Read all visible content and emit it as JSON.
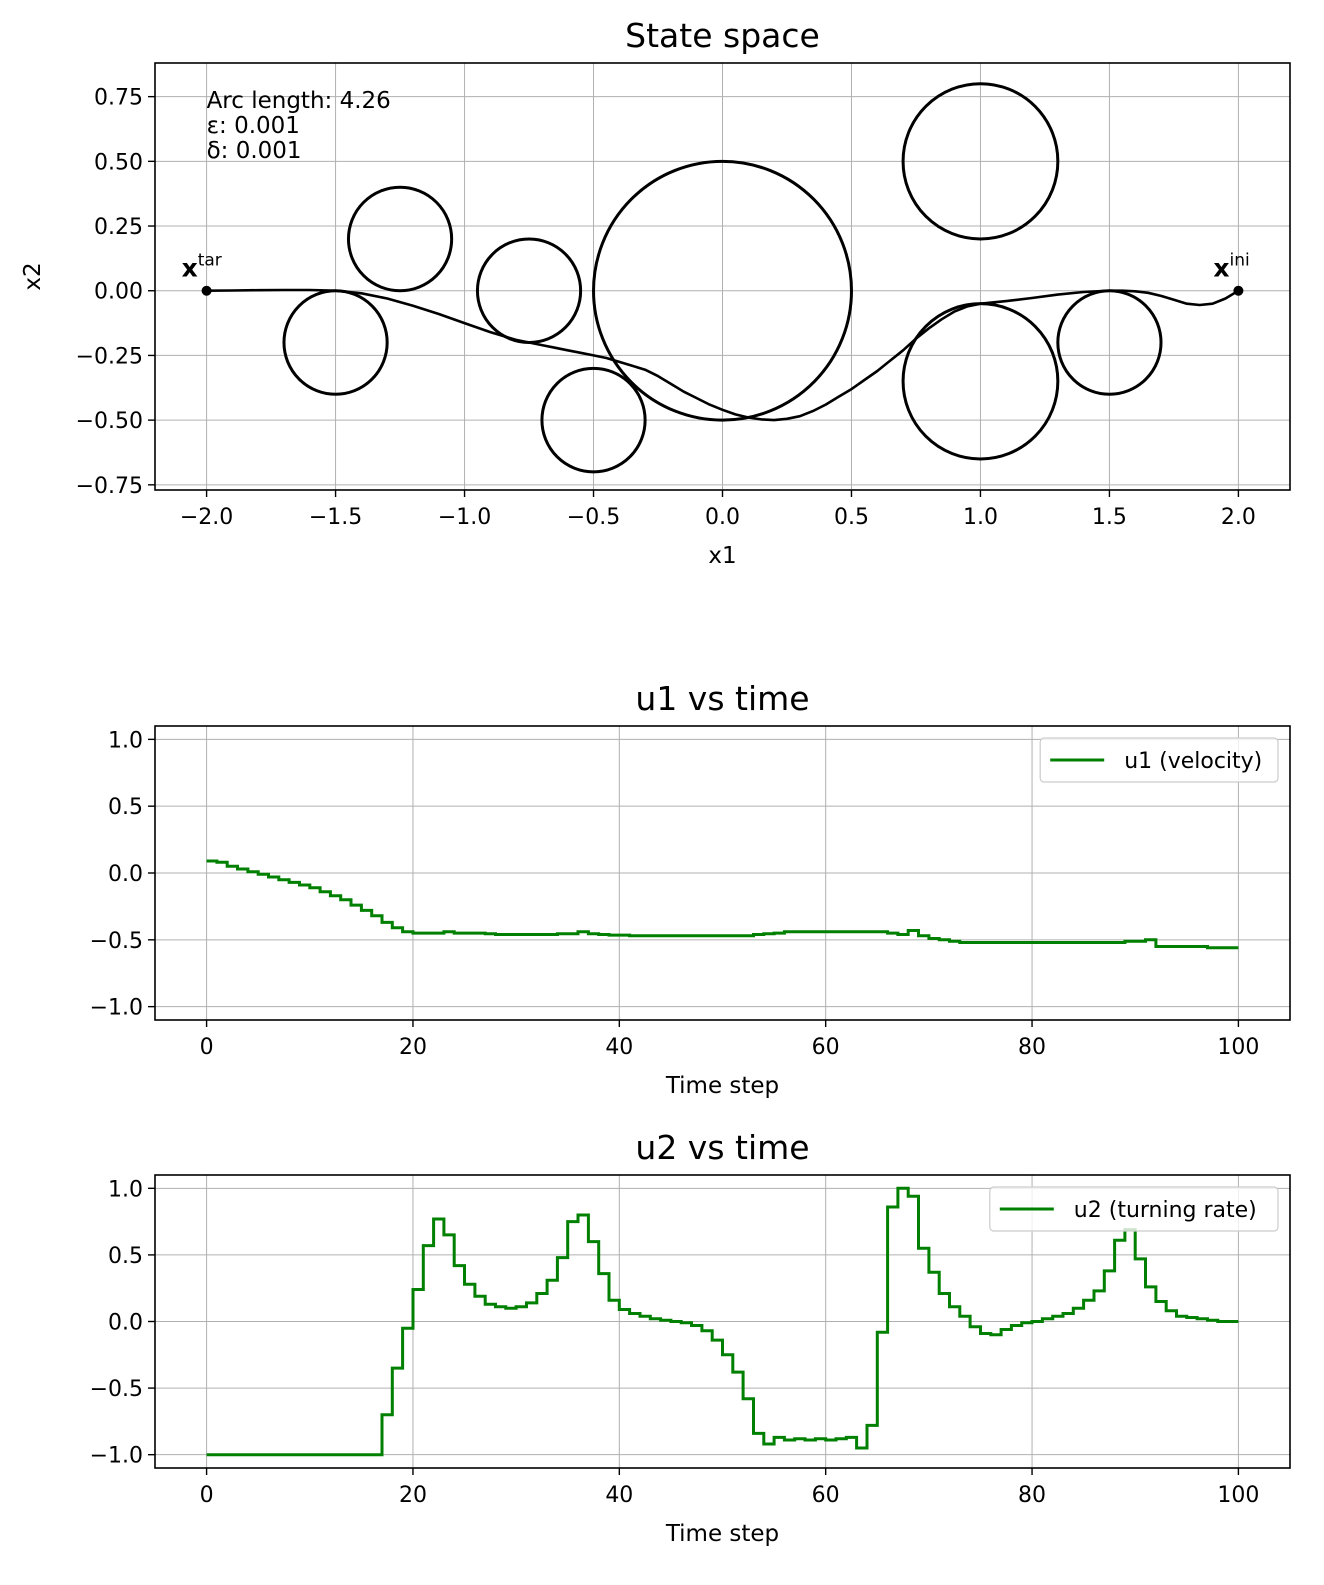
{
  "chart_data": [
    {
      "type": "scatter",
      "title": "State space",
      "xlabel": "x1",
      "ylabel": "x2",
      "xlim": [
        -2.2,
        2.2
      ],
      "ylim": [
        -0.77,
        0.88
      ],
      "grid": true,
      "xticks": [
        -2.0,
        -1.5,
        -1.0,
        -0.5,
        0.0,
        0.5,
        1.0,
        1.5,
        2.0
      ],
      "xtick_labels": [
        "−2.0",
        "−1.5",
        "−1.0",
        "−0.5",
        "0.0",
        "0.5",
        "1.0",
        "1.5",
        "2.0"
      ],
      "yticks": [
        0.75,
        0.5,
        0.25,
        0.0,
        -0.25,
        -0.5,
        -0.75
      ],
      "ytick_labels": [
        "0.75",
        "0.50",
        "0.25",
        "0.00",
        "−0.25",
        "−0.50",
        "−0.75"
      ],
      "annotations": [
        "Arc length: 4.26",
        "ε: 0.001",
        "δ: 0.001"
      ],
      "points": [
        {
          "label_main": "x",
          "label_sup": "tar",
          "x": -2.0,
          "y": 0.0
        },
        {
          "label_main": "x",
          "label_sup": "ini",
          "x": 2.0,
          "y": 0.0
        }
      ],
      "obstacles": [
        {
          "cx": -1.25,
          "cy": 0.2,
          "r": 0.2
        },
        {
          "cx": -1.5,
          "cy": -0.2,
          "r": 0.2
        },
        {
          "cx": -0.75,
          "cy": 0.0,
          "r": 0.2
        },
        {
          "cx": -0.5,
          "cy": -0.5,
          "r": 0.2
        },
        {
          "cx": 0.0,
          "cy": 0.0,
          "r": 0.5
        },
        {
          "cx": 1.0,
          "cy": 0.5,
          "r": 0.3
        },
        {
          "cx": 1.0,
          "cy": -0.35,
          "r": 0.3
        },
        {
          "cx": 1.5,
          "cy": -0.2,
          "r": 0.2
        }
      ],
      "trajectory": {
        "x": [
          2.0,
          1.95,
          1.9,
          1.85,
          1.8,
          1.75,
          1.7,
          1.65,
          1.6,
          1.55,
          1.5,
          1.4,
          1.3,
          1.2,
          1.1,
          1.0,
          0.95,
          0.9,
          0.85,
          0.8,
          0.75,
          0.7,
          0.65,
          0.6,
          0.55,
          0.5,
          0.45,
          0.4,
          0.35,
          0.3,
          0.25,
          0.2,
          0.15,
          0.1,
          0.05,
          0.0,
          -0.05,
          -0.1,
          -0.15,
          -0.2,
          -0.25,
          -0.3,
          -0.35,
          -0.4,
          -0.45,
          -0.5,
          -0.55,
          -0.6,
          -0.65,
          -0.7,
          -0.75,
          -0.8,
          -0.85,
          -0.9,
          -1.0,
          -1.1,
          -1.2,
          -1.3,
          -1.4,
          -1.5,
          -1.6,
          -1.7,
          -1.8,
          -1.9,
          -2.0
        ],
        "y": [
          0.0,
          -0.03,
          -0.05,
          -0.055,
          -0.05,
          -0.035,
          -0.02,
          -0.008,
          -0.002,
          0.0,
          0.0,
          -0.005,
          -0.015,
          -0.028,
          -0.04,
          -0.05,
          -0.06,
          -0.08,
          -0.11,
          -0.145,
          -0.185,
          -0.23,
          -0.27,
          -0.31,
          -0.345,
          -0.38,
          -0.41,
          -0.44,
          -0.465,
          -0.485,
          -0.495,
          -0.5,
          -0.497,
          -0.49,
          -0.478,
          -0.46,
          -0.44,
          -0.415,
          -0.39,
          -0.36,
          -0.33,
          -0.305,
          -0.29,
          -0.275,
          -0.26,
          -0.25,
          -0.24,
          -0.23,
          -0.22,
          -0.21,
          -0.2,
          -0.19,
          -0.175,
          -0.16,
          -0.125,
          -0.09,
          -0.058,
          -0.03,
          -0.01,
          0.0,
          0.003,
          0.003,
          0.002,
          0.001,
          0.0
        ]
      }
    },
    {
      "type": "line",
      "title": "u1 vs time",
      "xlabel": "Time step",
      "ylabel": "",
      "xlim": [
        -5,
        105
      ],
      "ylim": [
        -1.1,
        1.1
      ],
      "grid": true,
      "legend": "top-right",
      "xticks": [
        0,
        20,
        40,
        60,
        80,
        100
      ],
      "xtick_labels": [
        "0",
        "20",
        "40",
        "60",
        "80",
        "100"
      ],
      "yticks": [
        1.0,
        0.5,
        0.0,
        -0.5,
        -1.0
      ],
      "ytick_labels": [
        "1.0",
        "0.5",
        "0.0",
        "−0.5",
        "−1.0"
      ],
      "series": [
        {
          "name": "u1 (velocity)",
          "color": "#008000",
          "step": true,
          "values": [
            0.09,
            0.08,
            0.05,
            0.03,
            0.01,
            -0.01,
            -0.03,
            -0.05,
            -0.07,
            -0.09,
            -0.11,
            -0.14,
            -0.17,
            -0.2,
            -0.24,
            -0.28,
            -0.32,
            -0.37,
            -0.41,
            -0.44,
            -0.45,
            -0.45,
            -0.45,
            -0.44,
            -0.45,
            -0.45,
            -0.45,
            -0.455,
            -0.46,
            -0.46,
            -0.46,
            -0.46,
            -0.46,
            -0.46,
            -0.455,
            -0.455,
            -0.44,
            -0.455,
            -0.46,
            -0.465,
            -0.465,
            -0.47,
            -0.47,
            -0.47,
            -0.47,
            -0.47,
            -0.47,
            -0.47,
            -0.47,
            -0.47,
            -0.47,
            -0.47,
            -0.47,
            -0.46,
            -0.455,
            -0.45,
            -0.44,
            -0.44,
            -0.44,
            -0.44,
            -0.44,
            -0.44,
            -0.44,
            -0.44,
            -0.44,
            -0.44,
            -0.45,
            -0.46,
            -0.43,
            -0.47,
            -0.49,
            -0.5,
            -0.51,
            -0.52,
            -0.52,
            -0.52,
            -0.52,
            -0.52,
            -0.52,
            -0.52,
            -0.52,
            -0.52,
            -0.52,
            -0.52,
            -0.52,
            -0.52,
            -0.52,
            -0.52,
            -0.52,
            -0.51,
            -0.51,
            -0.5,
            -0.55,
            -0.55,
            -0.55,
            -0.55,
            -0.55,
            -0.56,
            -0.56,
            -0.56,
            -0.56
          ]
        }
      ]
    },
    {
      "type": "line",
      "title": "u2 vs time",
      "xlabel": "Time step",
      "ylabel": "",
      "xlim": [
        -5,
        105
      ],
      "ylim": [
        -1.1,
        1.1
      ],
      "grid": true,
      "legend": "top-right",
      "xticks": [
        0,
        20,
        40,
        60,
        80,
        100
      ],
      "xtick_labels": [
        "0",
        "20",
        "40",
        "60",
        "80",
        "100"
      ],
      "yticks": [
        1.0,
        0.5,
        0.0,
        -0.5,
        -1.0
      ],
      "ytick_labels": [
        "1.0",
        "0.5",
        "0.0",
        "−0.5",
        "−1.0"
      ],
      "series": [
        {
          "name": "u2 (turning rate)",
          "color": "#008000",
          "step": true,
          "values": [
            -1.0,
            -1.0,
            -1.0,
            -1.0,
            -1.0,
            -1.0,
            -1.0,
            -1.0,
            -1.0,
            -1.0,
            -1.0,
            -1.0,
            -1.0,
            -1.0,
            -1.0,
            -1.0,
            -1.0,
            -0.7,
            -0.35,
            -0.05,
            0.24,
            0.57,
            0.77,
            0.65,
            0.42,
            0.28,
            0.19,
            0.13,
            0.11,
            0.1,
            0.11,
            0.14,
            0.21,
            0.31,
            0.48,
            0.75,
            0.8,
            0.6,
            0.36,
            0.16,
            0.09,
            0.06,
            0.04,
            0.02,
            0.01,
            0.0,
            -0.01,
            -0.03,
            -0.07,
            -0.14,
            -0.25,
            -0.38,
            -0.58,
            -0.84,
            -0.92,
            -0.87,
            -0.89,
            -0.88,
            -0.89,
            -0.88,
            -0.89,
            -0.88,
            -0.87,
            -0.95,
            -0.78,
            -0.08,
            0.86,
            1.0,
            0.94,
            0.55,
            0.37,
            0.21,
            0.11,
            0.04,
            -0.04,
            -0.09,
            -0.1,
            -0.06,
            -0.03,
            -0.01,
            0.0,
            0.02,
            0.04,
            0.06,
            0.1,
            0.16,
            0.23,
            0.38,
            0.61,
            0.69,
            0.47,
            0.26,
            0.15,
            0.08,
            0.04,
            0.03,
            0.02,
            0.01,
            0.0,
            0.0,
            0.0
          ]
        }
      ]
    }
  ]
}
